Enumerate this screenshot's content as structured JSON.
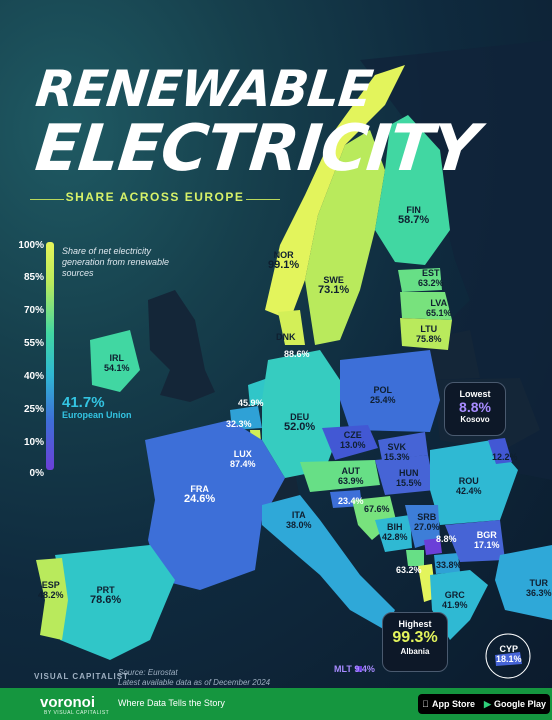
{
  "title": {
    "line1": "RENEWABLE",
    "line2": "ELECTRICITY"
  },
  "subtitle": "SHARE ACROSS EUROPE",
  "legend": {
    "ticks": [
      "100%",
      "85%",
      "70%",
      "55%",
      "40%",
      "25%",
      "10%",
      "0%"
    ],
    "note": "Share of net electricity generation from renewable sources",
    "eu_value": "41.7%",
    "eu_label": "European Union"
  },
  "countries": [
    {
      "code": "NOR",
      "value": "99.1%",
      "color": "#e3f45c"
    },
    {
      "code": "SWE",
      "value": "73.1%",
      "color": "#b9ea5c"
    },
    {
      "code": "FIN",
      "value": "58.7%",
      "color": "#41d7a2"
    },
    {
      "code": "EST",
      "value": "63.2%",
      "color": "#67df86"
    },
    {
      "code": "LVA",
      "value": "65.1%",
      "color": "#78e27d"
    },
    {
      "code": "LTU",
      "value": "75.8%",
      "color": "#b9ea5c"
    },
    {
      "code": "DNK",
      "value": "88.6%",
      "color": "#d3ef58"
    },
    {
      "code": "IRL",
      "value": "54.1%",
      "color": "#41d7a2"
    },
    {
      "code": "NLD",
      "value": "45.9%",
      "color": "#30c6c8"
    },
    {
      "code": "BEL",
      "value": "32.3%",
      "color": "#2fa1d6"
    },
    {
      "code": "LUX",
      "value": "87.4%",
      "color": "#d3ef58"
    },
    {
      "code": "DEU",
      "value": "52.0%",
      "color": "#36ccc0"
    },
    {
      "code": "POL",
      "value": "25.4%",
      "color": "#3d6fd8"
    },
    {
      "code": "CZE",
      "value": "13.0%",
      "color": "#4258d4"
    },
    {
      "code": "SVK",
      "value": "15.3%",
      "color": "#4664d6"
    },
    {
      "code": "AUT",
      "value": "63.9%",
      "color": "#67df86"
    },
    {
      "code": "HUN",
      "value": "15.5%",
      "color": "#4664d6"
    },
    {
      "code": "ROU",
      "value": "42.4%",
      "color": "#2fb9d3"
    },
    {
      "code": "FRA",
      "value": "24.6%",
      "color": "#3d6fd8"
    },
    {
      "code": "ITA",
      "value": "38.0%",
      "color": "#2fa8d8"
    },
    {
      "code": "SVN",
      "value": "23.4%",
      "color": "#3d6fd8"
    },
    {
      "code": "HRV",
      "value": "67.6%",
      "color": "#78e27d"
    },
    {
      "code": "BIH",
      "value": "42.8%",
      "color": "#2fb9d3"
    },
    {
      "code": "SRB",
      "value": "27.0%",
      "color": "#3d7ed8"
    },
    {
      "code": "MNE",
      "value": "63.2%",
      "color": "#67df86"
    },
    {
      "code": "MKD",
      "value": "33.8%",
      "color": "#2fa1d6"
    },
    {
      "code": "BGR",
      "value": "17.1%",
      "color": "#4664d6"
    },
    {
      "code": "XKX",
      "value": "8.8%",
      "color": "#6b3fd8"
    },
    {
      "code": "MDA",
      "value": "12.2%",
      "color": "#4258d4"
    },
    {
      "code": "GRC",
      "value": "41.9%",
      "color": "#2fb9d3"
    },
    {
      "code": "TUR",
      "value": "36.3%",
      "color": "#2fa8d8"
    },
    {
      "code": "CYP",
      "value": "18.1%",
      "color": "#4664d6"
    },
    {
      "code": "MLT",
      "value": "9.4%",
      "color": "#6b3fd8"
    },
    {
      "code": "PRT",
      "value": "78.6%",
      "color": "#b9ea5c"
    },
    {
      "code": "ESP",
      "value": "48.2%",
      "color": "#30c6c8"
    },
    {
      "code": "ALB",
      "value": "99.3%",
      "color": "#e3f45c"
    }
  ],
  "callouts": {
    "lowest": {
      "title": "Lowest",
      "value": "8.8%",
      "country": "Kosovo",
      "color": "#a78bff"
    },
    "highest": {
      "title": "Highest",
      "value": "99.3%",
      "country": "Albania",
      "color": "#e3f45c"
    }
  },
  "source": {
    "line1": "Source: Eurostat",
    "line2": "Latest available data as of December 2024"
  },
  "brand": {
    "name": "VISUAL CAPITALIST"
  },
  "footer": {
    "logo": "voronoi",
    "logo_sub": "BY VISUAL CAPITALIST",
    "tagline": "Where Data Tells the Story",
    "app_store": "App Store",
    "google_play": "Google Play"
  }
}
